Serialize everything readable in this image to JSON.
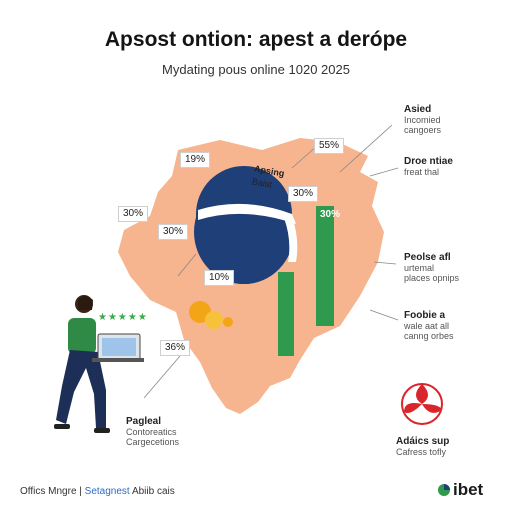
{
  "header": {
    "title": "Apsost ontion: apest a derópe",
    "subtitle": "Mydating pous online 1020 2025"
  },
  "map_labels": {
    "p1": "19%",
    "p2": "55%",
    "p3": "30%",
    "p4": "30%",
    "p5": "30%",
    "p6": "30%",
    "p7": "10%",
    "p8": "36%",
    "globe_caption_1": "Apsing",
    "globe_caption_2": "Baist"
  },
  "annotations": {
    "top_right": {
      "title": "Asied",
      "line1": "Incomied",
      "line2": "cangoers"
    },
    "right_2": {
      "title": "Droe ntiae",
      "line1": "freat thal"
    },
    "right_3": {
      "title": "Peolse afl",
      "line1": "urtemal",
      "line2": "places opnips"
    },
    "right_4": {
      "title": "Foobie a",
      "line1": "wale aat all",
      "line2": "canng orbes"
    },
    "bottom_left": {
      "title": "Pagleal",
      "line1": "Contoreatics",
      "line2": "Cargecetions"
    },
    "bottom_right": {
      "title": "Adáics sup",
      "line1": "Cafress tofly"
    }
  },
  "stars": "★★★★★",
  "footer": {
    "left_a": "Offics Mngre |",
    "left_b": "Setagnest",
    "left_c": "Abiib cais",
    "brand": "ibet"
  },
  "colors": {
    "map_fill": "#f6b48f",
    "globe": "#1e3f78",
    "bar_green": "#2f9a4e",
    "person_shirt": "#2f8a46",
    "coin": "#f2a516",
    "accent_red": "#d9262c"
  }
}
